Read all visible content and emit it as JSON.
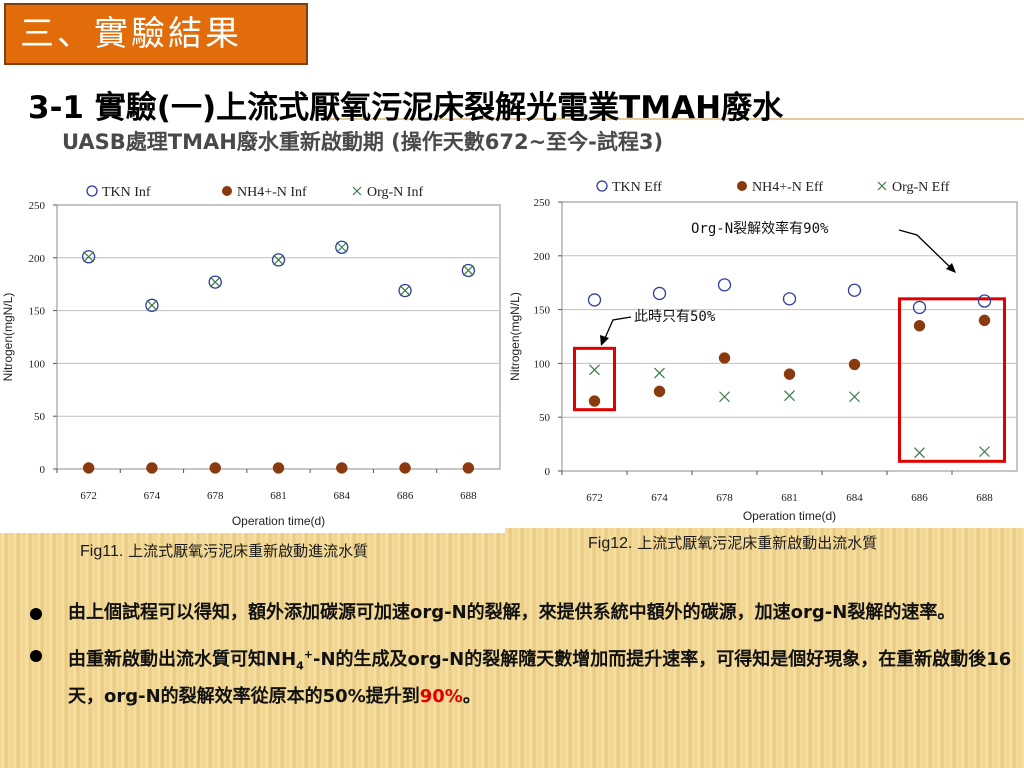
{
  "header": {
    "section": "三、實驗結果",
    "title": "3-1 實驗(一)上流式厭氧污泥床裂解光電業TMAH廢水",
    "subtitle": "UASB處理TMAH廢水重新啟動期 (操作天數672~至今-試程3)"
  },
  "captions": {
    "fig11_label": "Fig11.",
    "fig11_text": "上流式厭氧污泥床重新啟動進流水質",
    "fig12_label": "Fig12.",
    "fig12_text": "上流式厭氧污泥床重新啟動出流水質"
  },
  "bullets": {
    "b1": "由上個試程可以得知，額外添加碳源可加速org-N的裂解，來提供系統中額外的碳源，加速org-N裂解的速率。",
    "b2_a": "由重新啟動出流水質可知NH",
    "b2_sub": "4",
    "b2_sup": "+",
    "b2_b": "-N的生成及org-N的裂解隨天數增加而提升速率，可得知是個好現象，在重新啟動後16天，org-N的裂解效率從原本的50%提升到",
    "b2_highlight": "90%",
    "b2_end": "。"
  },
  "chart_data": [
    {
      "type": "scatter",
      "categories": [
        "672",
        "674",
        "678",
        "681",
        "684",
        "686",
        "688"
      ],
      "xlabel": "Operation time(d)",
      "ylabel": "Nitrogen(mgN/L)",
      "ylim": [
        0,
        250
      ],
      "yticks": [
        "0",
        "50",
        "100",
        "150",
        "200",
        "250"
      ],
      "legend_position": "top",
      "series": [
        {
          "name": "TKN Inf",
          "marker": "open-circle",
          "color": "#2e3ba0",
          "values": [
            201,
            155,
            177,
            198,
            210,
            169,
            188
          ]
        },
        {
          "name": "NH4+-N Inf",
          "marker": "filled-circle",
          "color": "#8b3a10",
          "values": [
            1,
            1,
            1,
            1,
            1,
            1,
            1
          ]
        },
        {
          "name": "Org-N Inf",
          "marker": "x",
          "color": "#3a7a4a",
          "values": [
            201,
            155,
            177,
            198,
            210,
            169,
            188
          ]
        }
      ]
    },
    {
      "type": "scatter",
      "categories": [
        "672",
        "674",
        "678",
        "681",
        "684",
        "686",
        "688"
      ],
      "xlabel": "Operation time(d)",
      "ylabel": "Nitrogen(mgN/L)",
      "ylim": [
        0,
        250
      ],
      "yticks": [
        "0",
        "50",
        "100",
        "150",
        "200",
        "250"
      ],
      "legend_position": "top",
      "series": [
        {
          "name": "TKN Eff",
          "marker": "open-circle",
          "color": "#2e3ba0",
          "values": [
            159,
            165,
            173,
            160,
            168,
            152,
            158
          ]
        },
        {
          "name": "NH4+-N Eff",
          "marker": "filled-circle",
          "color": "#8b3a10",
          "values": [
            65,
            74,
            105,
            90,
            99,
            135,
            140
          ]
        },
        {
          "name": "Org-N Eff",
          "marker": "x",
          "color": "#3a7a4a",
          "values": [
            94,
            91,
            69,
            70,
            69,
            17,
            18
          ]
        }
      ],
      "annotations": [
        {
          "text": "Org-N裂解效率有90%",
          "highlight_categories": [
            "686",
            "688"
          ]
        },
        {
          "text": "此時只有50%",
          "highlight_categories": [
            "672"
          ]
        }
      ]
    }
  ]
}
